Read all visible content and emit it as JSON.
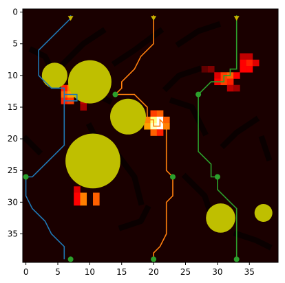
{
  "chart_data": {
    "type": "heatmap",
    "title": "",
    "xlabel": "",
    "ylabel": "",
    "xlim": [
      -0.5,
      39.5
    ],
    "ylim": [
      39.5,
      -0.5
    ],
    "x_ticks": [
      0,
      5,
      10,
      15,
      20,
      25,
      30,
      35
    ],
    "y_ticks": [
      0,
      5,
      10,
      15,
      20,
      25,
      30,
      35
    ],
    "x_tick_labels": [
      "0",
      "5",
      "10",
      "15",
      "20",
      "25",
      "30",
      "35"
    ],
    "y_tick_labels": [
      "0",
      "5",
      "10",
      "15",
      "20",
      "25",
      "30",
      "35"
    ],
    "grid": false,
    "legend": "none",
    "background_color": "#1a0000",
    "trail_color": "#0a0000",
    "heat_cells": [
      {
        "x": 34,
        "y": 7,
        "v": 0.3
      },
      {
        "x": 35,
        "y": 7,
        "v": 0.3
      },
      {
        "x": 34,
        "y": 8,
        "v": 0.4
      },
      {
        "x": 35,
        "y": 8,
        "v": 0.45
      },
      {
        "x": 36,
        "y": 8,
        "v": 0.35
      },
      {
        "x": 34,
        "y": 9,
        "v": 0.4
      },
      {
        "x": 35,
        "y": 9,
        "v": 0.4
      },
      {
        "x": 28,
        "y": 9,
        "v": 0.15
      },
      {
        "x": 29,
        "y": 9,
        "v": 0.2
      },
      {
        "x": 30,
        "y": 10,
        "v": 0.35
      },
      {
        "x": 31,
        "y": 10,
        "v": 0.5
      },
      {
        "x": 32,
        "y": 10,
        "v": 0.55
      },
      {
        "x": 33,
        "y": 10,
        "v": 0.4
      },
      {
        "x": 30,
        "y": 11,
        "v": 0.4
      },
      {
        "x": 31,
        "y": 11,
        "v": 0.5
      },
      {
        "x": 32,
        "y": 11,
        "v": 0.45
      },
      {
        "x": 32,
        "y": 12,
        "v": 0.3
      },
      {
        "x": 33,
        "y": 12,
        "v": 0.25
      },
      {
        "x": 6,
        "y": 12,
        "v": 0.45
      },
      {
        "x": 7,
        "y": 12,
        "v": 0.6
      },
      {
        "x": 6,
        "y": 13,
        "v": 0.55
      },
      {
        "x": 7,
        "y": 13,
        "v": 0.65
      },
      {
        "x": 6,
        "y": 14,
        "v": 0.45
      },
      {
        "x": 7,
        "y": 14,
        "v": 0.5
      },
      {
        "x": 9,
        "y": 14,
        "v": 0.3
      },
      {
        "x": 9,
        "y": 15,
        "v": 0.25
      },
      {
        "x": 20,
        "y": 16,
        "v": 0.5
      },
      {
        "x": 21,
        "y": 16,
        "v": 0.55
      },
      {
        "x": 19,
        "y": 17,
        "v": 0.6
      },
      {
        "x": 20,
        "y": 17,
        "v": 0.9
      },
      {
        "x": 21,
        "y": 17,
        "v": 1.0
      },
      {
        "x": 22,
        "y": 17,
        "v": 0.55
      },
      {
        "x": 19,
        "y": 18,
        "v": 0.65
      },
      {
        "x": 20,
        "y": 18,
        "v": 0.95
      },
      {
        "x": 21,
        "y": 18,
        "v": 1.0
      },
      {
        "x": 22,
        "y": 18,
        "v": 0.6
      },
      {
        "x": 20,
        "y": 19,
        "v": 0.55
      },
      {
        "x": 21,
        "y": 19,
        "v": 0.45
      },
      {
        "x": 8,
        "y": 28,
        "v": 0.35
      },
      {
        "x": 8,
        "y": 29,
        "v": 0.4
      },
      {
        "x": 8,
        "y": 30,
        "v": 0.4
      },
      {
        "x": 9,
        "y": 29,
        "v": 0.6
      },
      {
        "x": 9,
        "y": 30,
        "v": 0.6
      },
      {
        "x": 11,
        "y": 29,
        "v": 0.55
      },
      {
        "x": 11,
        "y": 30,
        "v": 0.55
      }
    ],
    "dark_trails": [
      [
        [
          6,
          8
        ],
        [
          9,
          5
        ],
        [
          12,
          3
        ]
      ],
      [
        [
          14,
          8
        ],
        [
          17,
          6
        ],
        [
          21,
          3
        ]
      ],
      [
        [
          24,
          5
        ],
        [
          27,
          3
        ],
        [
          30,
          2
        ]
      ],
      [
        [
          22,
          12
        ],
        [
          24,
          10
        ],
        [
          27,
          9
        ]
      ],
      [
        [
          23,
          14
        ],
        [
          26,
          15
        ],
        [
          28,
          19
        ]
      ],
      [
        [
          11,
          13
        ],
        [
          13,
          14
        ]
      ],
      [
        [
          10,
          18
        ],
        [
          11,
          20
        ],
        [
          13,
          22
        ]
      ],
      [
        [
          14,
          22
        ],
        [
          17,
          26
        ],
        [
          18,
          30
        ]
      ],
      [
        [
          15,
          34
        ],
        [
          18,
          33
        ],
        [
          19,
          31
        ]
      ],
      [
        [
          25,
          26
        ],
        [
          28,
          29
        ],
        [
          29,
          32
        ]
      ],
      [
        [
          31,
          21
        ],
        [
          33,
          19
        ],
        [
          36,
          17
        ]
      ],
      [
        [
          37,
          20
        ],
        [
          38,
          23
        ]
      ],
      [
        [
          0,
          20
        ],
        [
          2,
          22
        ]
      ],
      [
        [
          1,
          6
        ],
        [
          3,
          7
        ],
        [
          4,
          9
        ]
      ],
      [
        [
          33,
          35
        ],
        [
          36,
          36
        ],
        [
          38,
          37
        ]
      ]
    ],
    "obstacles": [
      {
        "x": 10,
        "y": 11,
        "r": 3.4
      },
      {
        "x": 4.5,
        "y": 10,
        "r": 2.0
      },
      {
        "x": 16,
        "y": 16.5,
        "r": 2.8
      },
      {
        "x": 10.5,
        "y": 23.5,
        "r": 4.3
      },
      {
        "x": 30.5,
        "y": 32.5,
        "r": 2.3
      },
      {
        "x": 37.2,
        "y": 31.7,
        "r": 1.4
      }
    ],
    "obstacle_color": "#bfbf00",
    "series": [
      {
        "color": "#1f77b4",
        "path": [
          [
            7,
            0.5
          ],
          [
            7,
            1
          ],
          [
            2,
            6
          ],
          [
            2,
            10
          ],
          [
            4,
            12
          ],
          [
            6,
            12
          ],
          [
            6,
            14
          ],
          [
            8,
            14
          ],
          [
            8,
            13
          ],
          [
            6,
            13
          ],
          [
            6,
            21
          ],
          [
            3,
            24
          ],
          [
            1,
            26
          ],
          [
            0,
            26
          ],
          [
            0,
            29
          ],
          [
            1,
            31
          ],
          [
            3,
            33
          ],
          [
            4,
            35
          ],
          [
            6,
            37
          ],
          [
            6,
            39
          ]
        ],
        "waypoints": [
          [
            0,
            26
          ],
          [
            7,
            39
          ]
        ]
      },
      {
        "color": "#ff7f0e",
        "path": [
          [
            20,
            0.5
          ],
          [
            20,
            5
          ],
          [
            18,
            7
          ],
          [
            17,
            9
          ],
          [
            15,
            11
          ],
          [
            15,
            12
          ],
          [
            14,
            13
          ],
          [
            17,
            13
          ],
          [
            19,
            15
          ],
          [
            19,
            17
          ],
          [
            20,
            17
          ],
          [
            20,
            18
          ],
          [
            21,
            18
          ],
          [
            21,
            17
          ],
          [
            22,
            18
          ],
          [
            22,
            25
          ],
          [
            23,
            26
          ],
          [
            23,
            29
          ],
          [
            22,
            30
          ],
          [
            22,
            35
          ],
          [
            21,
            37
          ],
          [
            20,
            38
          ],
          [
            20,
            39
          ]
        ],
        "waypoints": [
          [
            14,
            13
          ],
          [
            23,
            26
          ],
          [
            20,
            39
          ]
        ]
      },
      {
        "color": "#2ca02c",
        "path": [
          [
            33,
            0.5
          ],
          [
            33,
            9
          ],
          [
            32,
            9
          ],
          [
            32,
            10
          ],
          [
            31,
            10
          ],
          [
            31,
            11
          ],
          [
            29,
            11
          ],
          [
            27,
            13
          ],
          [
            27,
            22
          ],
          [
            29,
            24
          ],
          [
            29,
            26
          ],
          [
            30,
            26
          ],
          [
            30,
            28
          ],
          [
            32,
            30
          ],
          [
            33,
            31
          ],
          [
            33,
            39
          ]
        ],
        "waypoints": [
          [
            27,
            13
          ],
          [
            30,
            26
          ],
          [
            33,
            39
          ]
        ]
      }
    ],
    "start_markers": [
      [
        7,
        0.5
      ],
      [
        20,
        0.5
      ],
      [
        33,
        0.5
      ]
    ],
    "start_marker_color": "#c8b400",
    "waypoint_color": "#2ca02c"
  }
}
